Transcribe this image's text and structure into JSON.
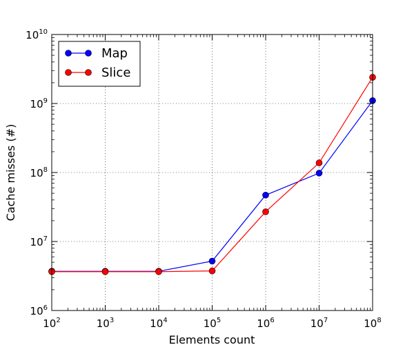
{
  "chart_data": {
    "type": "line",
    "xlabel": "Elements count",
    "ylabel": "Cache misses (#)",
    "xscale": "log",
    "yscale": "log",
    "xlim": [
      100,
      100000000
    ],
    "ylim": [
      1000000,
      10000000000
    ],
    "grid": true,
    "legend_position": "upper-left",
    "x_ticks": [
      {
        "base": "10",
        "exp": "2"
      },
      {
        "base": "10",
        "exp": "3"
      },
      {
        "base": "10",
        "exp": "4"
      },
      {
        "base": "10",
        "exp": "5"
      },
      {
        "base": "10",
        "exp": "6"
      },
      {
        "base": "10",
        "exp": "7"
      },
      {
        "base": "10",
        "exp": "8"
      }
    ],
    "y_ticks": [
      {
        "base": "10",
        "exp": "6"
      },
      {
        "base": "10",
        "exp": "7"
      },
      {
        "base": "10",
        "exp": "8"
      },
      {
        "base": "10",
        "exp": "9"
      },
      {
        "base": "10",
        "exp": "10"
      }
    ],
    "x": [
      100,
      1000,
      10000,
      100000,
      1000000,
      10000000,
      100000000
    ],
    "series": [
      {
        "name": "Map",
        "color": "#0000ff",
        "values": [
          3700000,
          3700000,
          3700000,
          5200000,
          47000000,
          98000000,
          1100000000
        ]
      },
      {
        "name": "Slice",
        "color": "#ff0000",
        "values": [
          3650000,
          3650000,
          3650000,
          3750000,
          27000000,
          138000000,
          2400000000
        ]
      }
    ]
  }
}
